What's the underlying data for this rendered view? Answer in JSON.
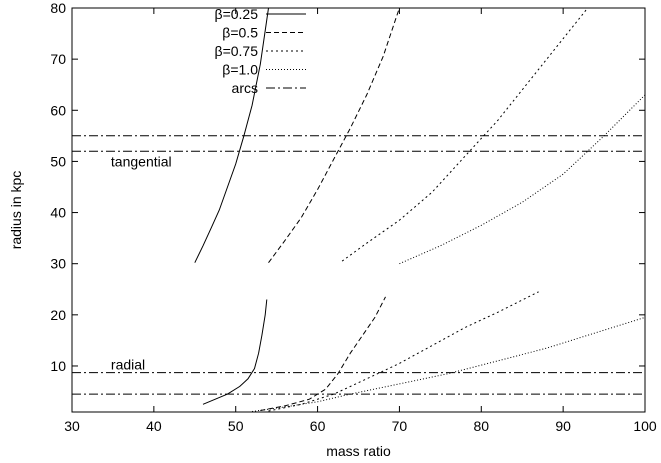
{
  "chart_data": {
    "type": "line",
    "title": "",
    "xlabel": "mass ratio",
    "ylabel": "radius in kpc",
    "xlim": [
      30,
      100
    ],
    "ylim": [
      1,
      80
    ],
    "xticks": [
      30,
      40,
      50,
      60,
      70,
      80,
      90,
      100
    ],
    "yticks": [
      10,
      20,
      30,
      40,
      50,
      60,
      70,
      80
    ],
    "grid": false,
    "legend_position": "top-left",
    "series": [
      {
        "name": "β=0.25",
        "dash": "solid",
        "segments": [
          [
            [
              45,
              30.2
            ],
            [
              46,
              33.5
            ],
            [
              47,
              37
            ],
            [
              48,
              40.5
            ],
            [
              49,
              45
            ],
            [
              50,
              49.5
            ],
            [
              51,
              55
            ],
            [
              52,
              61
            ],
            [
              53,
              69
            ],
            [
              54,
              80
            ]
          ],
          [
            [
              46,
              2.5
            ],
            [
              47.5,
              3.5
            ],
            [
              49,
              4.5
            ],
            [
              50.5,
              6
            ],
            [
              51.5,
              7.5
            ],
            [
              52.3,
              9.5
            ],
            [
              52.8,
              12.5
            ],
            [
              53.2,
              16
            ],
            [
              53.6,
              20
            ],
            [
              53.8,
              23
            ]
          ]
        ]
      },
      {
        "name": "β=0.5",
        "dash": "dashed",
        "segments": [
          [
            [
              54,
              30.2
            ],
            [
              56,
              34.5
            ],
            [
              58,
              39
            ],
            [
              60,
              44.5
            ],
            [
              62,
              50.5
            ],
            [
              64,
              56.5
            ],
            [
              66,
              63
            ],
            [
              68,
              70.5
            ],
            [
              70,
              80
            ]
          ],
          [
            [
              53,
              1.3
            ],
            [
              56,
              2.2
            ],
            [
              59,
              3.5
            ],
            [
              61,
              5.5
            ],
            [
              62.5,
              8.5
            ],
            [
              64,
              12.5
            ],
            [
              65.5,
              16
            ],
            [
              67,
              19.5
            ],
            [
              68.3,
              23.5
            ]
          ]
        ]
      },
      {
        "name": "β=0.75",
        "dash": "dotted",
        "segments": [
          [
            [
              63,
              30.5
            ],
            [
              66,
              34
            ],
            [
              70,
              38.5
            ],
            [
              74,
              44
            ],
            [
              78,
              51
            ],
            [
              82,
              58
            ],
            [
              86,
              66
            ],
            [
              90,
              74
            ],
            [
              93,
              80
            ]
          ],
          [
            [
              54,
              1.2
            ],
            [
              58,
              2.5
            ],
            [
              62,
              4.5
            ],
            [
              66,
              7.5
            ],
            [
              70,
              10.5
            ],
            [
              74,
              14
            ],
            [
              78,
              17.5
            ],
            [
              82,
              20.5
            ],
            [
              87,
              24.5
            ]
          ]
        ]
      },
      {
        "name": "β=1.0",
        "dash": "dense-dotted",
        "segments": [
          [
            [
              70,
              30
            ],
            [
              75,
              33.5
            ],
            [
              80,
              37.5
            ],
            [
              85,
              42
            ],
            [
              90,
              47.5
            ],
            [
              95,
              55
            ],
            [
              100,
              63
            ]
          ],
          [
            [
              52,
              1.1
            ],
            [
              56,
              2
            ],
            [
              60,
              3
            ],
            [
              64,
              4.5
            ],
            [
              70,
              6.5
            ],
            [
              76,
              8.5
            ],
            [
              82,
              11
            ],
            [
              88,
              13.5
            ],
            [
              94,
              16.5
            ],
            [
              100,
              19.5
            ]
          ]
        ]
      },
      {
        "name": "arcs",
        "dash": "dash-dot",
        "segments": [
          [
            [
              30,
              55
            ],
            [
              100,
              55
            ]
          ],
          [
            [
              30,
              52
            ],
            [
              100,
              52
            ]
          ],
          [
            [
              30,
              8.7
            ],
            [
              100,
              8.7
            ]
          ],
          [
            [
              30,
              4.5
            ],
            [
              100,
              4.5
            ]
          ]
        ]
      }
    ],
    "annotations": [
      {
        "text": "tangential",
        "x": 35,
        "y": 49
      },
      {
        "text": "radial",
        "x": 35,
        "y": 9.3
      }
    ]
  }
}
